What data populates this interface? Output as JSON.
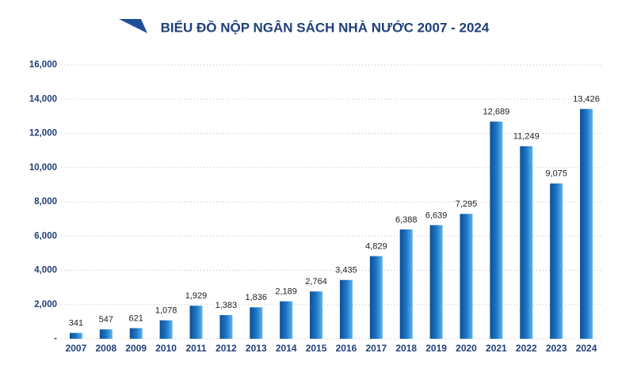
{
  "chart_data": {
    "type": "bar",
    "title": "BIỂU ĐỒ NỘP NGÂN SÁCH NHÀ NƯỚC 2007 - 2024",
    "categories": [
      "2007",
      "2008",
      "2009",
      "2010",
      "2011",
      "2012",
      "2013",
      "2014",
      "2015",
      "2016",
      "2017",
      "2018",
      "2019",
      "2020",
      "2021",
      "2022",
      "2023",
      "2024"
    ],
    "values": [
      341,
      547,
      621,
      1078,
      1929,
      1383,
      1836,
      2189,
      2764,
      3435,
      4829,
      6388,
      6639,
      7295,
      12689,
      11249,
      9075,
      13426
    ],
    "value_labels": [
      "341",
      "547",
      "621",
      "1,078",
      "1,929",
      "1,383",
      "1,836",
      "2,189",
      "2,764",
      "3,435",
      "4,829",
      "6,388",
      "6,639",
      "7,295",
      "12,689",
      "11,249",
      "9,075",
      "13,426"
    ],
    "color": "#1b75c4",
    "ylim": [
      0,
      16000
    ],
    "yticks": [
      {
        "value": 0,
        "label": "-"
      },
      {
        "value": 2000,
        "label": "2,000"
      },
      {
        "value": 4000,
        "label": "4,000"
      },
      {
        "value": 6000,
        "label": "6,000"
      },
      {
        "value": 8000,
        "label": "8,000"
      },
      {
        "value": 10000,
        "label": "10,000"
      },
      {
        "value": 12000,
        "label": "12,000"
      },
      {
        "value": 14000,
        "label": "14,000"
      },
      {
        "value": 16000,
        "label": "16,000"
      }
    ],
    "grid": true
  }
}
